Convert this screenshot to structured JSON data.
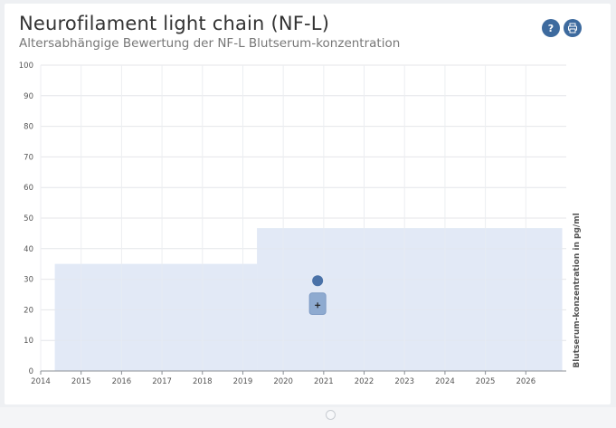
{
  "header": {
    "title": "Neurofilament light chain (NF-L)",
    "subtitle": "Altersabhängige Bewertung der NF-L Blutserum-konzentration",
    "help_label": "?",
    "help_icon": "help-icon",
    "print_icon": "print-icon"
  },
  "colors": {
    "band": "#e2e9f5",
    "marker": "#4a72a8",
    "box": "#8eaad0",
    "button": "#3d6a9e"
  },
  "chart_data": {
    "type": "scatter",
    "ylabel": "Blutserum-konzentration in pg/ml",
    "xlabel": "",
    "xlim": [
      2014,
      2027
    ],
    "ylim": [
      0,
      100
    ],
    "x_ticks": [
      "2014",
      "2015",
      "2016",
      "2017",
      "2018",
      "2019",
      "2020",
      "2021",
      "2022",
      "2023",
      "2024",
      "2025",
      "2026"
    ],
    "y_ticks": [
      "0",
      "10",
      "20",
      "30",
      "40",
      "50",
      "60",
      "70",
      "80",
      "90",
      "100"
    ],
    "grid": true,
    "reference_bands": [
      {
        "x_start": 2014.35,
        "x_end": 2019.35,
        "y_low": 0,
        "y_high": 35
      },
      {
        "x_start": 2019.35,
        "x_end": 2026.9,
        "y_low": 0,
        "y_high": 46.7
      }
    ],
    "points": [
      {
        "x": 2020.85,
        "y": 29.5
      }
    ],
    "boxes": [
      {
        "x": 2020.85,
        "y_low": 18.5,
        "y_high": 25.5,
        "median": 21.5
      }
    ]
  }
}
